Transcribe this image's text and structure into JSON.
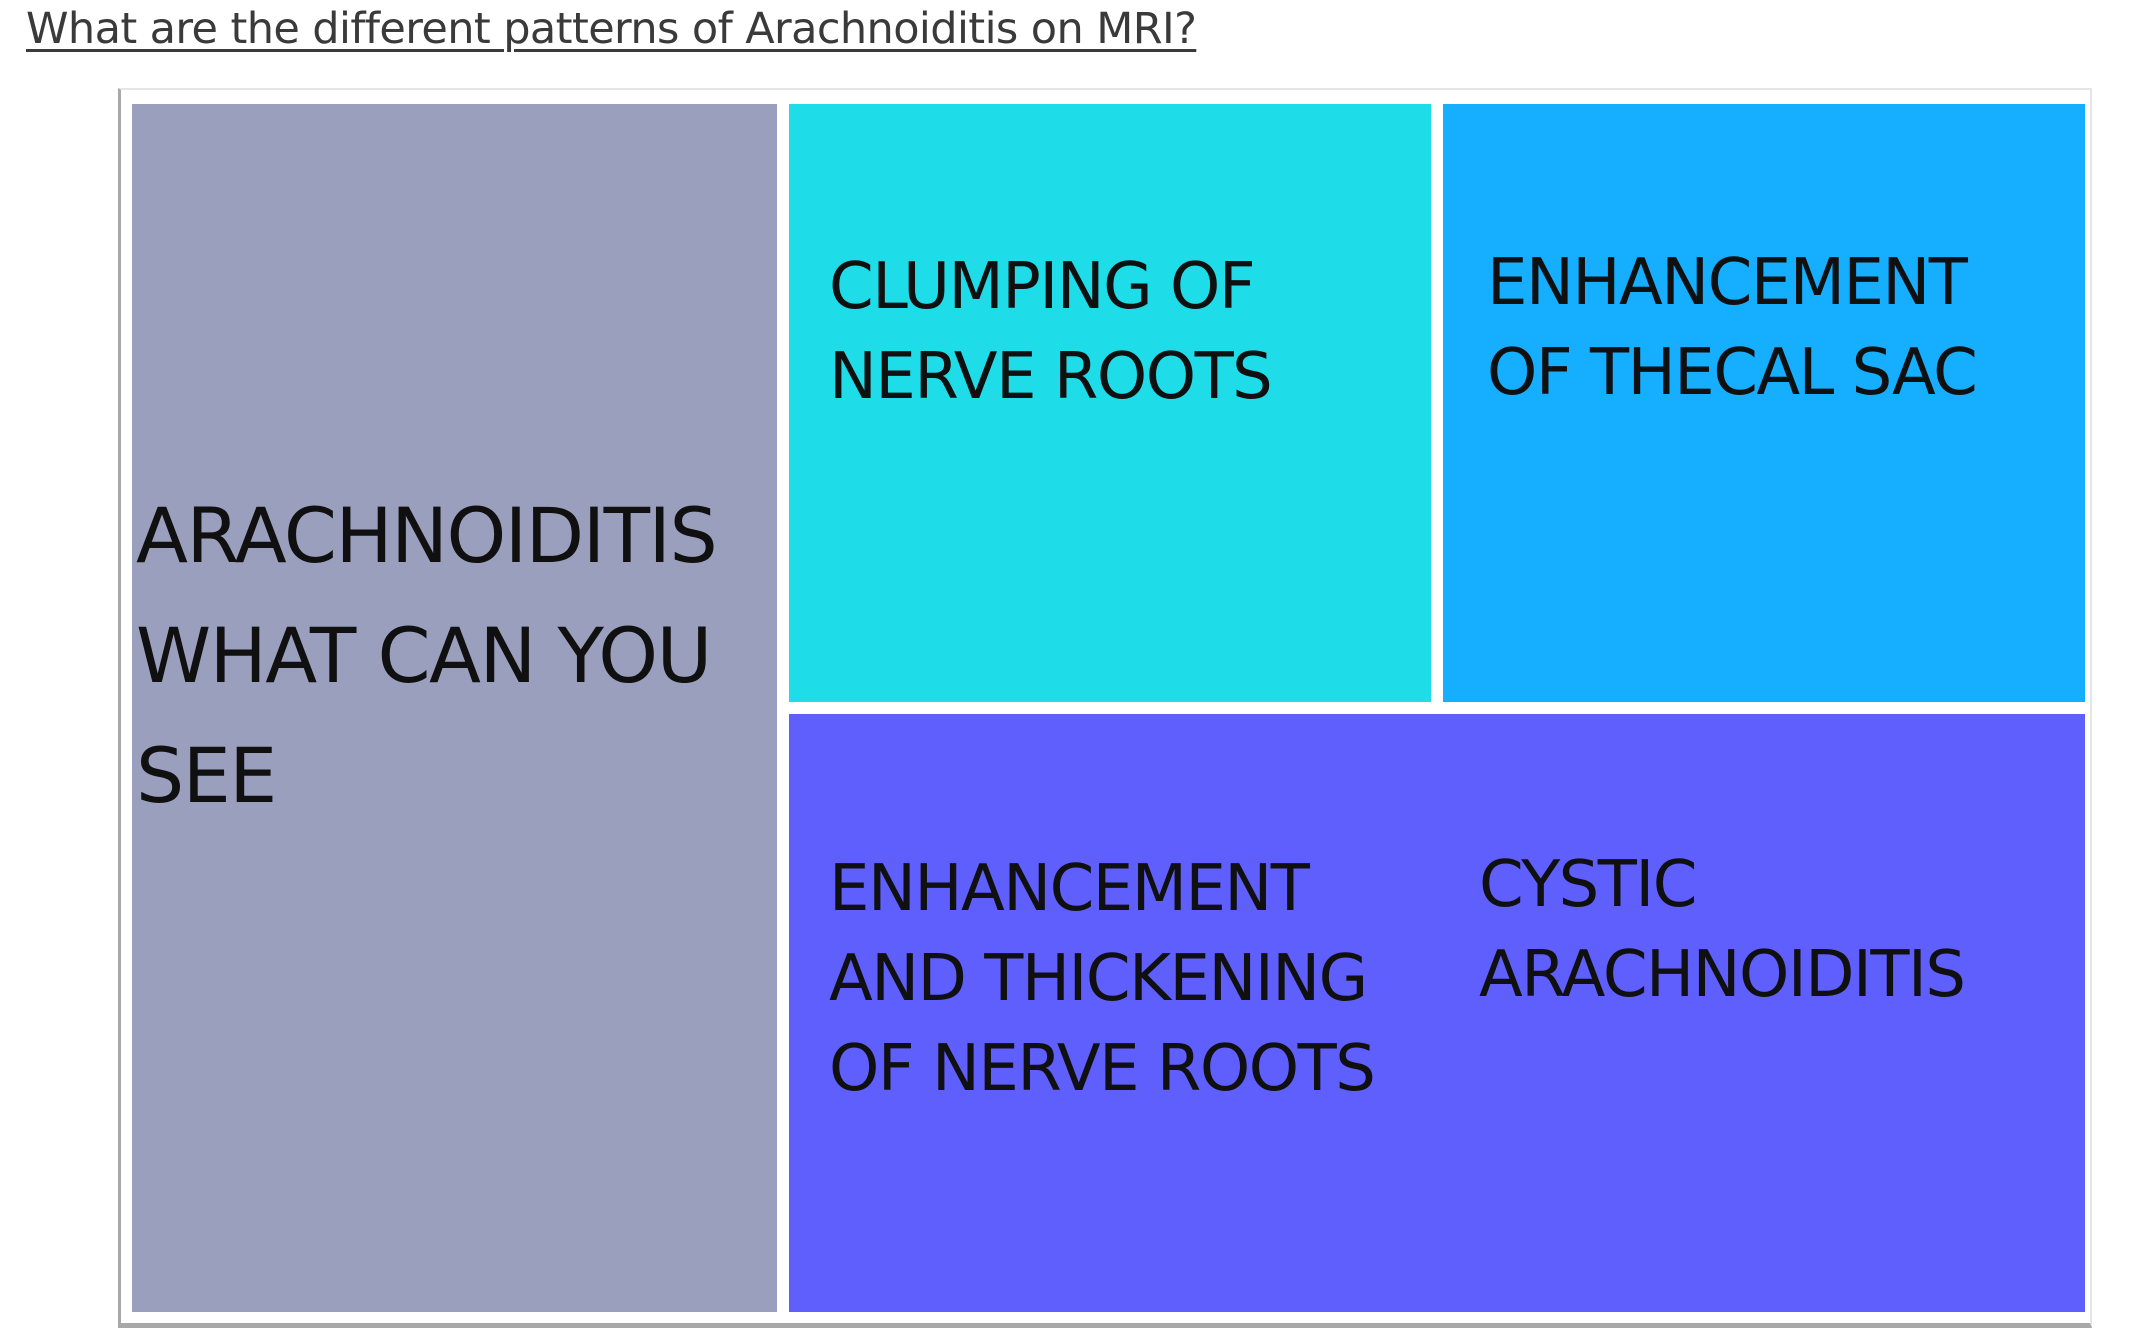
{
  "heading": "What are the different patterns of Arachnoiditis on MRI?",
  "diagram": {
    "root": {
      "lines": [
        "ARACHNOIDITIS",
        "WHAT CAN YOU",
        "SEE"
      ],
      "color": "#9b9fbe"
    },
    "patterns": [
      {
        "lines": [
          "CLUMPING OF",
          "NERVE ROOTS"
        ],
        "color": "#1edde8"
      },
      {
        "lines": [
          "ENHANCEMENT",
          "OF THECAL SAC"
        ],
        "color": "#16aefe"
      },
      {
        "lines": [
          "ENHANCEMENT",
          "AND THICKENING",
          "OF NERVE ROOTS"
        ],
        "color": "#5f5ffe"
      },
      {
        "lines": [
          "CYSTIC",
          "ARACHNOIDITIS"
        ],
        "color": "#5f5ffe"
      }
    ]
  }
}
